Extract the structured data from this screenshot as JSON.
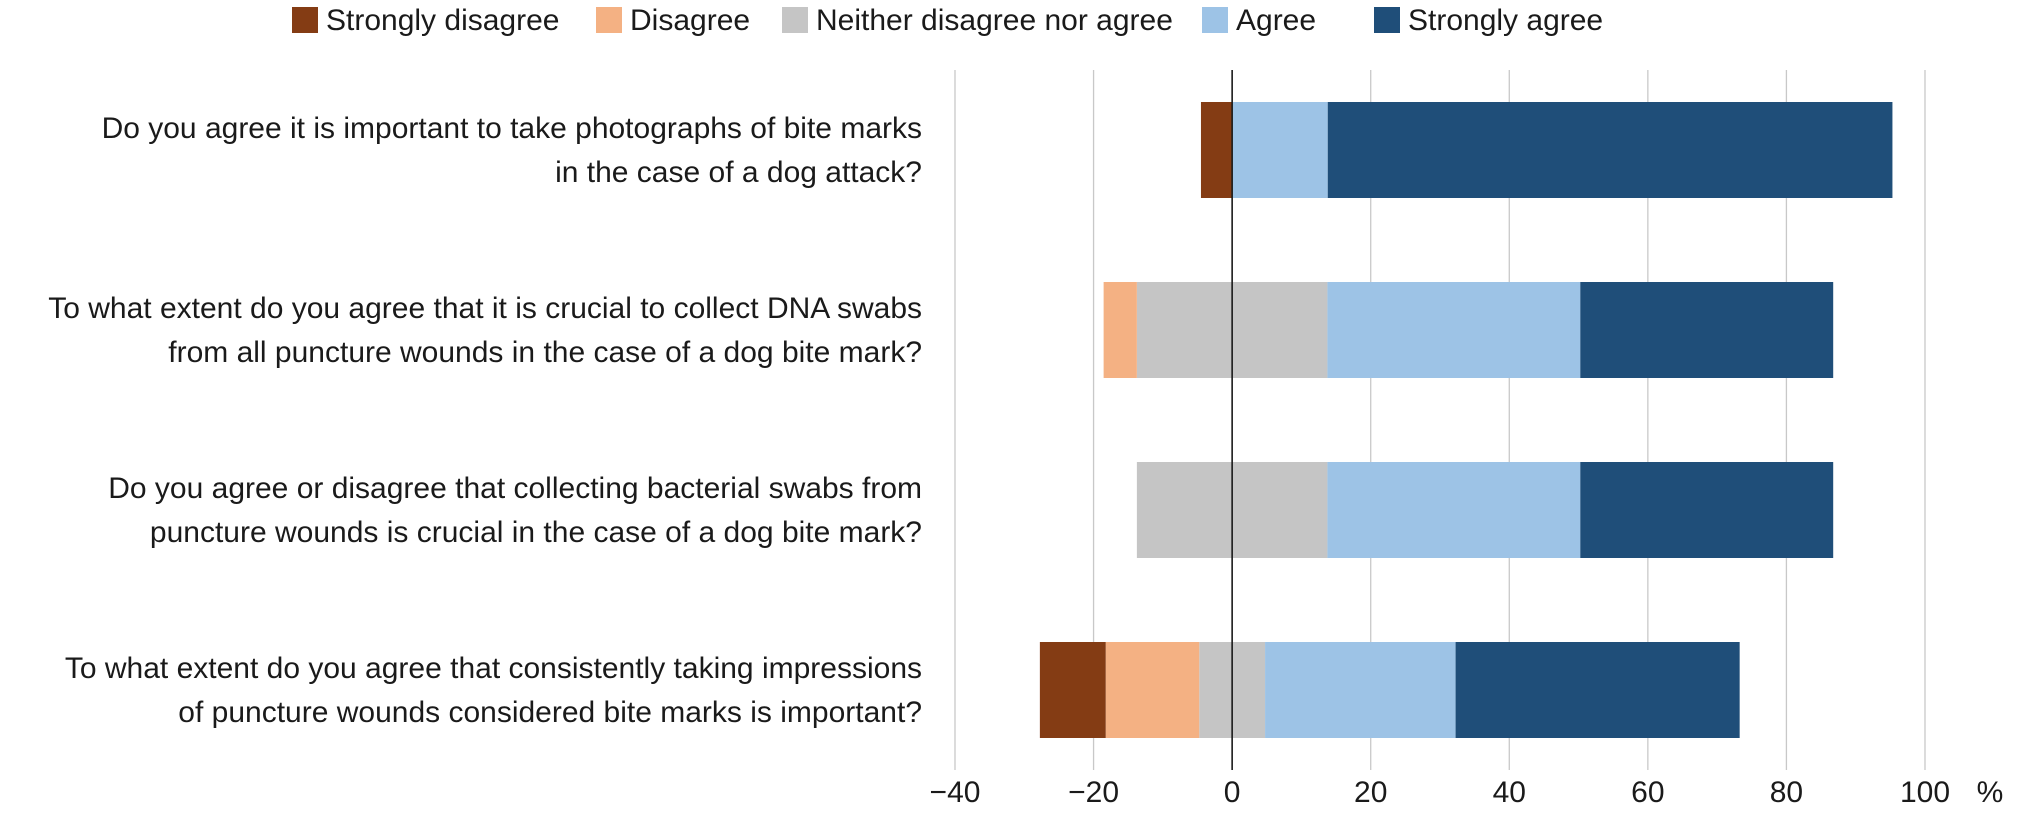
{
  "chart_data": {
    "type": "bar",
    "orientation": "horizontal",
    "stacked": "diverging",
    "title": "",
    "xlabel": "",
    "ylabel": "",
    "unit_label": "%",
    "xlim": [
      -40,
      100
    ],
    "xticks": [
      -40,
      -20,
      0,
      20,
      40,
      60,
      80,
      100
    ],
    "xtick_labels": [
      "−40",
      "−20",
      "0",
      "20",
      "40",
      "60",
      "80",
      "100"
    ],
    "grid": true,
    "legend_position": "top",
    "categories": [
      {
        "lines": [
          "Do you agree it is important to take photographs of bite marks",
          "in the case of a dog attack?"
        ],
        "negative_stack": [
          "strongly_disagree"
        ],
        "positive_stack": [
          "agree",
          "strongly_agree"
        ]
      },
      {
        "lines": [
          "To what extent do you agree that it is crucial to collect DNA swabs",
          "from all puncture wounds in the case of a dog bite mark?"
        ],
        "negative_stack": [
          "neither",
          "disagree"
        ],
        "positive_stack": [
          "neither",
          "agree",
          "strongly_agree"
        ]
      },
      {
        "lines": [
          "Do you agree or disagree that collecting bacterial swabs from",
          "puncture wounds is crucial in the case of a dog bite mark?"
        ],
        "negative_stack": [
          "neither"
        ],
        "positive_stack": [
          "neither",
          "agree",
          "strongly_agree"
        ]
      },
      {
        "lines": [
          "To what extent do you agree that consistently taking impressions",
          "of puncture wounds considered bite marks is important?"
        ],
        "negative_stack": [
          "neither",
          "disagree",
          "strongly_disagree"
        ],
        "positive_stack": [
          "neither",
          "agree",
          "strongly_agree"
        ]
      }
    ],
    "series": [
      {
        "key": "strongly_disagree",
        "name": "Strongly disagree",
        "color": "#843c14",
        "values": [
          -4.5,
          0,
          0,
          -9.5
        ]
      },
      {
        "key": "disagree",
        "name": "Disagree",
        "color": "#f4b183",
        "values": [
          0,
          -4.8,
          0,
          -13.5
        ]
      },
      {
        "key": "neither",
        "name": "Neither disagree nor agree",
        "color": "#c5c5c5",
        "values": [
          0,
          27.5,
          27.5,
          9.5
        ],
        "split": "centered"
      },
      {
        "key": "agree",
        "name": "Agree",
        "color": "#9dc3e6",
        "values": [
          13.8,
          36.5,
          36.5,
          27.5
        ]
      },
      {
        "key": "strongly_agree",
        "name": "Strongly agree",
        "color": "#1f4e79",
        "values": [
          81.5,
          36.5,
          36.5,
          41.0
        ]
      }
    ]
  }
}
